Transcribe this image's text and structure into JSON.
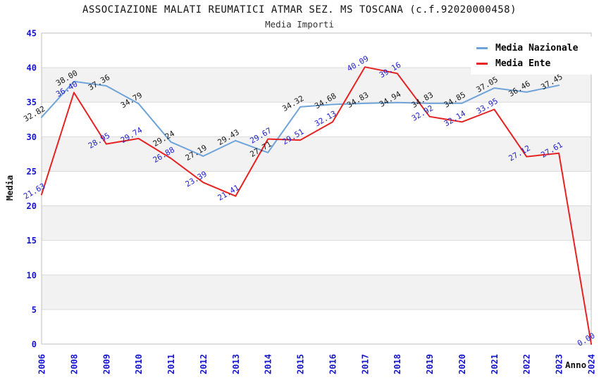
{
  "title": "ASSOCIAZIONE MALATI REUMATICI ATMAR SEZ. MS TOSCANA (c.f.92020000458)",
  "subtitle": "Media Importi",
  "chart_data": {
    "type": "line",
    "x": [
      "2006",
      "2008",
      "2009",
      "2010",
      "2011",
      "2012",
      "2013",
      "2014",
      "2015",
      "2016",
      "2017",
      "2018",
      "2019",
      "2020",
      "2021",
      "2022",
      "2023",
      "2024"
    ],
    "xlabel": "Anno",
    "ylabel": "Media",
    "ylim": [
      0,
      45
    ],
    "ytick_step": 5,
    "yticks": [
      0,
      5,
      10,
      15,
      20,
      25,
      30,
      35,
      40,
      45
    ],
    "grid": true,
    "banded_rows": true,
    "legend_position": "top-right",
    "series": [
      {
        "name": "Media Nazionale",
        "color": "#6fa3d9",
        "label_color": "#1a1a1a",
        "values": [
          32.82,
          38.0,
          37.36,
          34.79,
          29.24,
          27.19,
          29.43,
          27.71,
          34.32,
          34.68,
          34.83,
          34.94,
          34.83,
          34.85,
          37.05,
          36.46,
          37.45,
          null
        ]
      },
      {
        "name": "Media Ente",
        "color": "#e62222",
        "label_color": "#2323cc",
        "values": [
          21.63,
          36.4,
          28.95,
          29.74,
          26.88,
          23.39,
          21.41,
          29.67,
          29.51,
          32.13,
          40.09,
          39.16,
          32.92,
          32.14,
          33.95,
          27.12,
          27.61,
          0.0
        ]
      }
    ]
  },
  "colors": {
    "tick_label": "#1414cc",
    "grid_line": "#dcdcdc",
    "plot_border": "#bfbfbf",
    "band_fill": "#f2f2f2",
    "background": "#ffffff"
  }
}
